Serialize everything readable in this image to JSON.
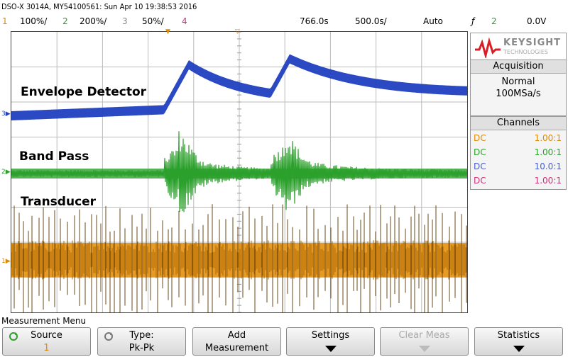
{
  "title_bar": {
    "text": "DSO-X 3014A, MY54100561: Sun Apr 10 19:38:53 2016"
  },
  "status_bar": {
    "ch1_num": "1",
    "ch1_scale": "100%/",
    "ch2_num": "2",
    "ch2_scale": "200%/",
    "ch3_num": "3",
    "ch3_scale": "50%/",
    "ch4_num": "4",
    "delay": "766.0s",
    "timebase": "500.0s/",
    "trigger_mode": "Auto",
    "trigger_ch": "2",
    "trigger_level": "0.0V"
  },
  "waveform_labels": {
    "envelope": "Envelope Detector",
    "bandpass": "Band Pass",
    "transducer": "Transducer"
  },
  "side_panel": {
    "brand_name": "KEYSIGHT",
    "brand_sub": "TECHNOLOGIES",
    "acquisition_title": "Acquisition",
    "acq_mode": "Normal",
    "acq_rate": "100MSa/s",
    "channels_title": "Channels",
    "channels": [
      {
        "coupling": "DC",
        "ratio": "1.00:1",
        "color": "#e08a00"
      },
      {
        "coupling": "DC",
        "ratio": "1.00:1",
        "color": "#2ca02c"
      },
      {
        "coupling": "DC",
        "ratio": "10.0:1",
        "color": "#4a5fd0"
      },
      {
        "coupling": "DC",
        "ratio": "1.00:1",
        "color": "#d0307a"
      }
    ]
  },
  "menu": {
    "title": "Measurement Menu",
    "softkeys": {
      "source_l1": "Source",
      "source_l2": "1",
      "type_l1": "Type:",
      "type_l2": "Pk-Pk",
      "add_l1": "Add",
      "add_l2": "Measurement",
      "settings_l1": "Settings",
      "clear_l1": "Clear Meas",
      "stats_l1": "Statistics"
    }
  },
  "colors": {
    "ch1": "#e08a00",
    "ch2": "#2ca02c",
    "ch3": "#1f3fbf",
    "ch4": "#d0307a"
  }
}
